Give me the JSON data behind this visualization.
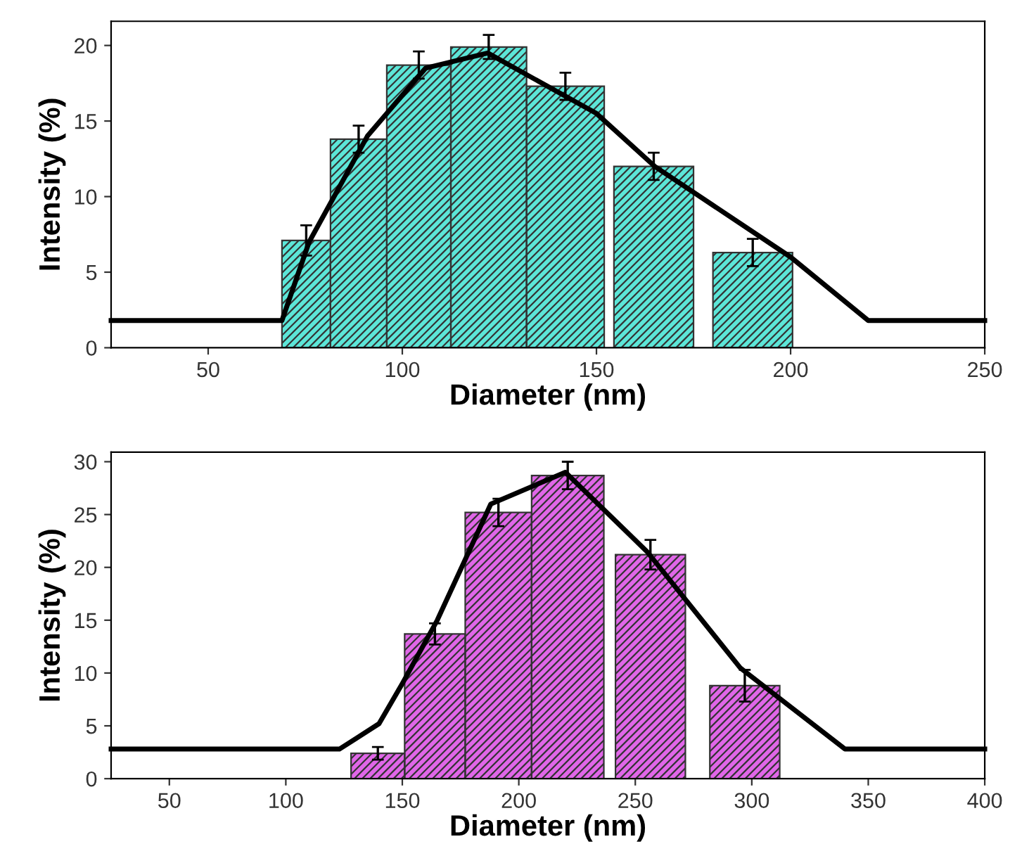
{
  "chart_data": [
    {
      "type": "histogram",
      "xlabel": "Diameter (nm)",
      "ylabel": "Intensity (%)",
      "bins": [
        69,
        81.5,
        96,
        112.5,
        132,
        152,
        154.5,
        175,
        180,
        200.5
      ],
      "xlim": [
        25,
        250
      ],
      "ylim": [
        0,
        21.6
      ],
      "xticks": [
        50,
        100,
        150,
        200,
        250
      ],
      "yticks": [
        0,
        5,
        10,
        15,
        20
      ],
      "series": [
        {
          "color": "#5ce6d8",
          "values": [
            7.1,
            13.8,
            18.7,
            19.9,
            17.3,
            null,
            12.0,
            null,
            6.3
          ],
          "errors": [
            1.0,
            0.9,
            0.9,
            0.8,
            0.9,
            null,
            0.9,
            null,
            0.9
          ]
        },
        {
          "type": "line",
          "color": "#000000",
          "x": [
            25,
            69,
            76,
            91,
            106,
            122,
            150,
            165,
            200,
            220,
            250
          ],
          "values": [
            1.8,
            1.8,
            7,
            14,
            18.5,
            19.5,
            15.5,
            12,
            6,
            1.8,
            1.8
          ]
        }
      ]
    },
    {
      "type": "histogram",
      "xlabel": "Diameter (nm)",
      "ylabel": "Intensity (%)",
      "bins": [
        128,
        151,
        177,
        205.5,
        236.5,
        241.5,
        271.5,
        282,
        312
      ],
      "xlim": [
        25,
        400
      ],
      "ylim": [
        0,
        30.9
      ],
      "xticks": [
        50,
        100,
        150,
        200,
        250,
        300,
        350,
        400
      ],
      "yticks": [
        0,
        5,
        10,
        15,
        20,
        25,
        30
      ],
      "series": [
        {
          "color": "#e066e8",
          "values": [
            2.4,
            13.7,
            25.2,
            28.7,
            null,
            21.2,
            null,
            8.8
          ],
          "errors": [
            0.6,
            1.0,
            1.3,
            1.3,
            null,
            1.4,
            null,
            1.5
          ]
        },
        {
          "type": "line",
          "color": "#000000",
          "x": [
            25,
            123,
            140,
            150,
            165,
            188,
            220,
            255,
            295,
            340,
            400
          ],
          "values": [
            2.8,
            2.8,
            5.2,
            9,
            15,
            26,
            29,
            21.5,
            10.5,
            2.8,
            2.8
          ]
        }
      ]
    }
  ]
}
